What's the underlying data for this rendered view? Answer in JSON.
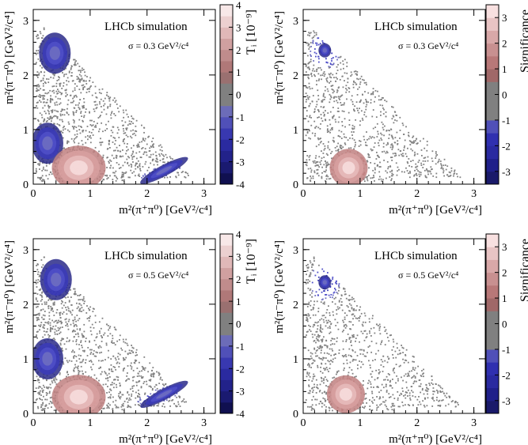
{
  "chart_data": [
    {
      "type": "scatter",
      "title": "LHCb simulation",
      "subtitle": "σ = 0.3 GeV²/c⁴",
      "xlabel": "m²(π⁺π⁰) [GeV²/c⁴]",
      "ylabel": "m²(π⁻π⁰) [GeV²/c⁴]",
      "xlim": [
        0,
        3.2
      ],
      "ylim": [
        0,
        3.2
      ],
      "xticks": [
        "0",
        "1",
        "2",
        "3"
      ],
      "yticks": [
        "0",
        "1",
        "2",
        "3"
      ],
      "colorbar": {
        "label": "Tᵢ [10⁻⁹]",
        "range": [
          -4,
          4
        ],
        "ticks": [
          "-4",
          "-3",
          "-2",
          "-1",
          "0",
          "1",
          "2",
          "3",
          "4"
        ]
      },
      "features": [
        {
          "kind": "deficit",
          "x": 0.38,
          "y": 2.4,
          "value": -2.5
        },
        {
          "kind": "deficit",
          "x": 0.25,
          "y": 0.75,
          "value": -1.8
        },
        {
          "kind": "excess",
          "x": 0.8,
          "y": 0.3,
          "value": 3.5
        },
        {
          "kind": "deficit-band",
          "x": 2.3,
          "y": 0.25,
          "value": -1.2
        }
      ]
    },
    {
      "type": "scatter",
      "title": "LHCb simulation",
      "subtitle": "σ = 0.3 GeV²/c⁴",
      "xlabel": "m²(π⁺π⁰) [GeV²/c⁴]",
      "ylabel": "m²(π⁻π⁰) [GeV²/c⁴]",
      "xlim": [
        0,
        3.2
      ],
      "ylim": [
        0,
        3.2
      ],
      "xticks": [
        "0",
        "1",
        "2",
        "3"
      ],
      "yticks": [
        "0",
        "1",
        "2",
        "3"
      ],
      "colorbar": {
        "label": "Significance",
        "range": [
          -3.5,
          3.5
        ],
        "ticks": [
          "-3",
          "-2",
          "-1",
          "0",
          "1",
          "2",
          "3"
        ]
      },
      "features": [
        {
          "kind": "deficit",
          "x": 0.38,
          "y": 2.45,
          "value": -2.5
        },
        {
          "kind": "excess",
          "x": 0.8,
          "y": 0.3,
          "value": 3.2
        }
      ]
    },
    {
      "type": "scatter",
      "title": "LHCb simulation",
      "subtitle": "σ = 0.5 GeV²/c⁴",
      "xlabel": "m²(π⁺π⁰) [GeV²/c⁴]",
      "ylabel": "m²(π⁻π⁰) [GeV²/c⁴]",
      "xlim": [
        0,
        3.2
      ],
      "ylim": [
        0,
        3.2
      ],
      "xticks": [
        "0",
        "1",
        "2",
        "3"
      ],
      "yticks": [
        "0",
        "1",
        "2",
        "3"
      ],
      "colorbar": {
        "label": "Tᵢ [10⁻⁹]",
        "range": [
          -4,
          4
        ],
        "ticks": [
          "-4",
          "-3",
          "-2",
          "-1",
          "0",
          "1",
          "2",
          "3",
          "4"
        ]
      },
      "features": [
        {
          "kind": "deficit",
          "x": 0.4,
          "y": 2.45,
          "value": -3
        },
        {
          "kind": "deficit",
          "x": 0.25,
          "y": 1.0,
          "value": -1.5
        },
        {
          "kind": "excess",
          "x": 0.8,
          "y": 0.3,
          "value": 3.5
        },
        {
          "kind": "deficit-band",
          "x": 2.3,
          "y": 0.35,
          "value": -1.5
        }
      ]
    },
    {
      "type": "scatter",
      "title": "LHCb simulation",
      "subtitle": "σ = 0.5 GeV²/c⁴",
      "xlabel": "m²(π⁺π⁰) [GeV²/c⁴]",
      "ylabel": "m²(π⁻π⁰) [GeV²/c⁴]",
      "xlim": [
        0,
        3.2
      ],
      "ylim": [
        0,
        3.2
      ],
      "xticks": [
        "0",
        "1",
        "2",
        "3"
      ],
      "yticks": [
        "0",
        "1",
        "2",
        "3"
      ],
      "colorbar": {
        "label": "Significance",
        "range": [
          -3.5,
          3.5
        ],
        "ticks": [
          "-3",
          "-2",
          "-1",
          "0",
          "1",
          "2",
          "3"
        ]
      },
      "features": [
        {
          "kind": "deficit",
          "x": 0.38,
          "y": 2.4,
          "value": -2.5
        },
        {
          "kind": "excess",
          "x": 0.75,
          "y": 0.35,
          "value": 3.0
        }
      ]
    }
  ],
  "colors": {
    "dalitz_points": "#808080",
    "negative": [
      "#2a2a88",
      "#3a3ab8",
      "#5050c8",
      "#7070c0"
    ],
    "positive": [
      "#c08080",
      "#d8a0a0",
      "#e8bcbc",
      "#f8dede"
    ],
    "neutral": "#808080"
  }
}
